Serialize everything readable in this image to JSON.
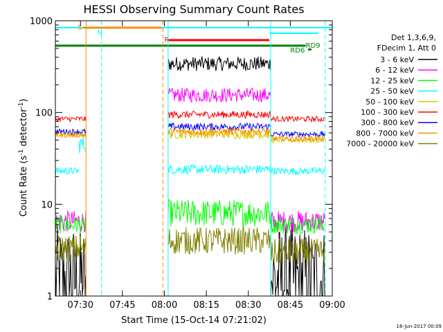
{
  "chart_data": {
    "type": "line",
    "title": "HESSI Observing Summary Count Rates",
    "xlabel": "Start Time (15-Oct-14 07:21:02)",
    "ylabel": "Count Rate (s",
    "ylabel_sup1": "-1",
    "ylabel_mid": " detector",
    "ylabel_sup2": "-1",
    "ylabel_end": ")",
    "y_scale": "log",
    "ylim": [
      1,
      1000
    ],
    "xlim": [
      "07:21:02",
      "09:00:00"
    ],
    "x_ticks": [
      "07:30",
      "07:45",
      "08:00",
      "08:15",
      "08:30",
      "08:45",
      "09:00"
    ],
    "y_ticks": [
      "1",
      "10",
      "100",
      "1000"
    ],
    "legend": {
      "placement": "right",
      "header": [
        "Det 1,3,6,9,",
        "FDecim 1, Att 0"
      ],
      "entries": [
        {
          "label": "3 - 6 keV",
          "color": "#000000"
        },
        {
          "label": "6 - 12 keV",
          "color": "#ff00ff"
        },
        {
          "label": "12 - 25 keV",
          "color": "#00ff00"
        },
        {
          "label": "25 - 50 keV",
          "color": "#00ffff"
        },
        {
          "label": "50 - 100 keV",
          "color": "#d4c800"
        },
        {
          "label": "100 - 300 keV",
          "color": "#ff0000"
        },
        {
          "label": "300 - 800 keV",
          "color": "#0000ff"
        },
        {
          "label": "800 - 7000 keV",
          "color": "#ff8c00"
        },
        {
          "label": "7000 - 20000 keV",
          "color": "#808000"
        }
      ]
    },
    "flag_labels": [
      "S",
      "N",
      "F",
      "RD9",
      "RD6"
    ],
    "flag_colors": {
      "S": "#ff8c00",
      "N": "#00ffff",
      "F": "#ff0000",
      "RD": "#008000"
    },
    "series": [
      {
        "name": "3 - 6 keV",
        "color": "#000000",
        "segments": [
          {
            "x": [
              "07:21:02",
              "07:32:00"
            ],
            "level": 1.5,
            "noise": 0.6
          },
          {
            "x": [
              "08:01:20",
              "08:38:00"
            ],
            "level": 340,
            "noise": 0.08
          },
          {
            "x": [
              "08:38:00",
              "08:57:30"
            ],
            "level": 1.5,
            "noise": 0.6
          }
        ]
      },
      {
        "name": "6 - 12 keV",
        "color": "#ff00ff",
        "segments": [
          {
            "x": [
              "07:21:02",
              "07:32:00"
            ],
            "level": 6.5,
            "noise": 0.12
          },
          {
            "x": [
              "08:01:20",
              "08:38:00"
            ],
            "level": 155,
            "noise": 0.08
          },
          {
            "x": [
              "08:38:00",
              "08:57:30"
            ],
            "level": 6.5,
            "noise": 0.12
          }
        ]
      },
      {
        "name": "12 - 25 keV",
        "color": "#00ff00",
        "segments": [
          {
            "x": [
              "07:21:02",
              "07:32:00"
            ],
            "level": 6.0,
            "noise": 0.1
          },
          {
            "x": [
              "08:01:20",
              "08:38:00"
            ],
            "level": 8.0,
            "noise": 0.15
          },
          {
            "x": [
              "08:38:00",
              "08:57:30"
            ],
            "level": 6.0,
            "noise": 0.1
          }
        ]
      },
      {
        "name": "25 - 50 keV",
        "color": "#00ffff",
        "segments": [
          {
            "x": [
              "07:21:02",
              "07:29:30"
            ],
            "level": 23,
            "noise": 0.04
          },
          {
            "x": [
              "07:29:30",
              "07:32:00"
            ],
            "level": 45,
            "noise": 0.1
          },
          {
            "x": [
              "08:01:20",
              "08:38:00"
            ],
            "level": 24,
            "noise": 0.05
          },
          {
            "x": [
              "08:38:00",
              "08:57:30"
            ],
            "level": 23,
            "noise": 0.04
          }
        ]
      },
      {
        "name": "50 - 100 keV",
        "color": "#d4c800",
        "segments": [
          {
            "x": [
              "07:21:02",
              "07:32:00"
            ],
            "level": 58,
            "noise": 0.03
          },
          {
            "x": [
              "08:01:20",
              "08:38:00"
            ],
            "level": 58,
            "noise": 0.05
          },
          {
            "x": [
              "08:38:00",
              "08:57:30"
            ],
            "level": 50,
            "noise": 0.03
          }
        ]
      },
      {
        "name": "100 - 300 keV",
        "color": "#ff0000",
        "segments": [
          {
            "x": [
              "07:21:02",
              "07:32:00"
            ],
            "level": 85,
            "noise": 0.03
          },
          {
            "x": [
              "08:01:20",
              "08:38:00"
            ],
            "level": 95,
            "noise": 0.04
          },
          {
            "x": [
              "08:38:00",
              "08:57:30"
            ],
            "level": 85,
            "noise": 0.03
          }
        ]
      },
      {
        "name": "300 - 800 keV",
        "color": "#0000ff",
        "segments": [
          {
            "x": [
              "07:21:02",
              "07:32:00"
            ],
            "level": 62,
            "noise": 0.03
          },
          {
            "x": [
              "08:01:20",
              "08:38:00"
            ],
            "level": 70,
            "noise": 0.04
          },
          {
            "x": [
              "08:38:00",
              "08:57:30"
            ],
            "level": 58,
            "noise": 0.03
          }
        ]
      },
      {
        "name": "800 - 7000 keV",
        "color": "#ff8c00",
        "segments": [
          {
            "x": [
              "07:21:02",
              "07:32:00"
            ],
            "level": 57,
            "noise": 0.03
          },
          {
            "x": [
              "08:01:20",
              "08:38:00"
            ],
            "level": 62,
            "noise": 0.04
          },
          {
            "x": [
              "08:38:00",
              "08:57:30"
            ],
            "level": 52,
            "noise": 0.03
          }
        ]
      },
      {
        "name": "7000 - 20000 keV",
        "color": "#808000",
        "segments": [
          {
            "x": [
              "07:21:02",
              "07:32:00"
            ],
            "level": 3.3,
            "noise": 0.15
          },
          {
            "x": [
              "08:01:20",
              "08:38:00"
            ],
            "level": 4.0,
            "noise": 0.15
          },
          {
            "x": [
              "08:38:00",
              "08:57:30"
            ],
            "level": 3.0,
            "noise": 0.15
          }
        ]
      }
    ]
  },
  "footer": {
    "date": "16-Jun-2017 00:09"
  }
}
